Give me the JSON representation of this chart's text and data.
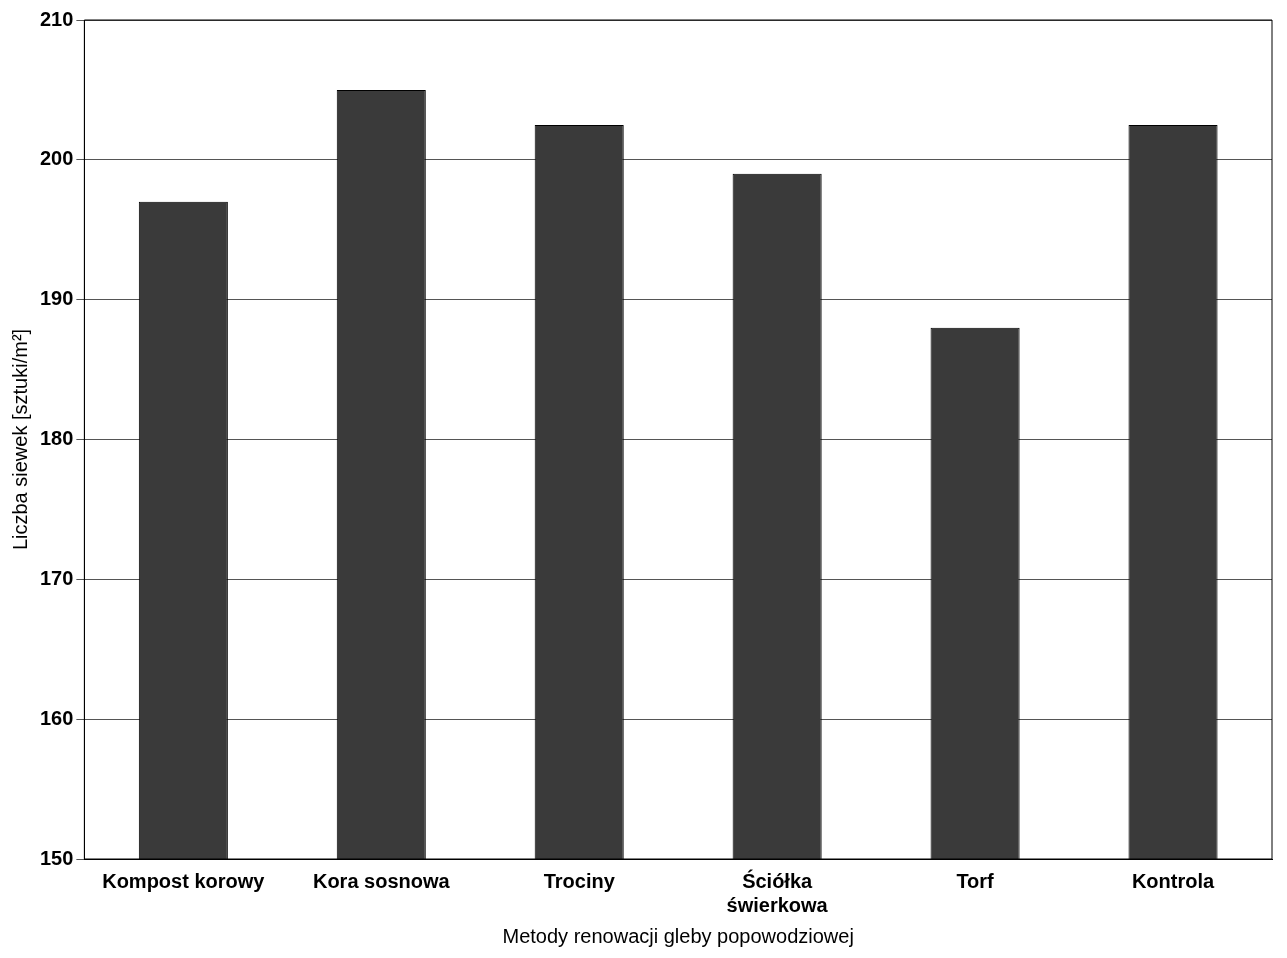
{
  "chart_data": {
    "type": "bar",
    "xlabel": "Metody renowacji gleby popowodziowej",
    "ylabel": "Liczba siewek [sztuki/m²]",
    "categories": [
      "Kompost korowy",
      "Kora sosnowa",
      "Trociny",
      "Ściółka świerkowa",
      "Torf",
      "Kontrola"
    ],
    "values": [
      197,
      205,
      202.5,
      199,
      188,
      202.5
    ],
    "color": "#3a3a3a",
    "ylim": [
      150,
      210
    ],
    "yticks": [
      150,
      160,
      170,
      180,
      190,
      200,
      210
    ],
    "grid": "y",
    "legend": false
  }
}
